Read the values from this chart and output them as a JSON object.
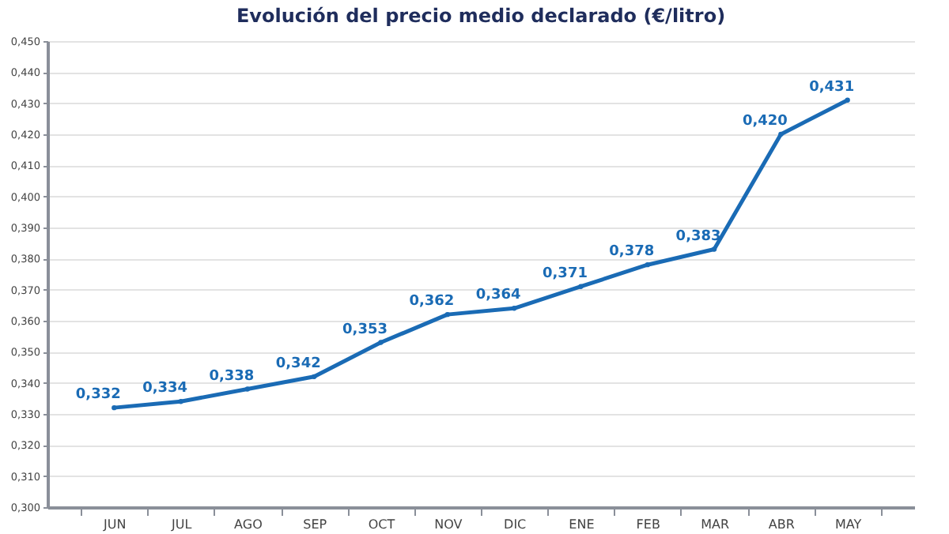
{
  "chart_data": {
    "type": "line",
    "title": "Evolución del precio medio declarado  (€/litro)",
    "categories": [
      "JUN",
      "JUL",
      "AGO",
      "SEP",
      "OCT",
      "NOV",
      "DIC",
      "ENE",
      "FEB",
      "MAR",
      "ABR",
      "MAY"
    ],
    "series": [
      {
        "color": "#1a6bb5",
        "values": [
          0.332,
          0.334,
          0.338,
          0.342,
          0.353,
          0.362,
          0.364,
          0.371,
          0.378,
          0.383,
          0.42,
          0.431
        ],
        "value_labels": [
          "0,332",
          "0,334",
          "0,338",
          "0,342",
          "0,353",
          "0,362",
          "0,364",
          "0,371",
          "0,378",
          "0,383",
          "0,420",
          "0,431"
        ]
      }
    ],
    "ylim": [
      0.3,
      0.45
    ],
    "yticks": [
      {
        "value": 0.3,
        "label": "0,300"
      },
      {
        "value": 0.31,
        "label": "0,310"
      },
      {
        "value": 0.32,
        "label": "0,320"
      },
      {
        "value": 0.33,
        "label": "0,330"
      },
      {
        "value": 0.34,
        "label": "0,340"
      },
      {
        "value": 0.35,
        "label": "0,350"
      },
      {
        "value": 0.36,
        "label": "0,360"
      },
      {
        "value": 0.37,
        "label": "0,370"
      },
      {
        "value": 0.38,
        "label": "0,380"
      },
      {
        "value": 0.39,
        "label": "0,390"
      },
      {
        "value": 0.4,
        "label": "0,400"
      },
      {
        "value": 0.41,
        "label": "0,410"
      },
      {
        "value": 0.42,
        "label": "0,420"
      },
      {
        "value": 0.43,
        "label": "0,430"
      },
      {
        "value": 0.44,
        "label": "0,440"
      },
      {
        "value": 0.45,
        "label": "0,450"
      }
    ],
    "grid": "y",
    "marker": "circle",
    "line_style": "solid",
    "legend": false
  }
}
